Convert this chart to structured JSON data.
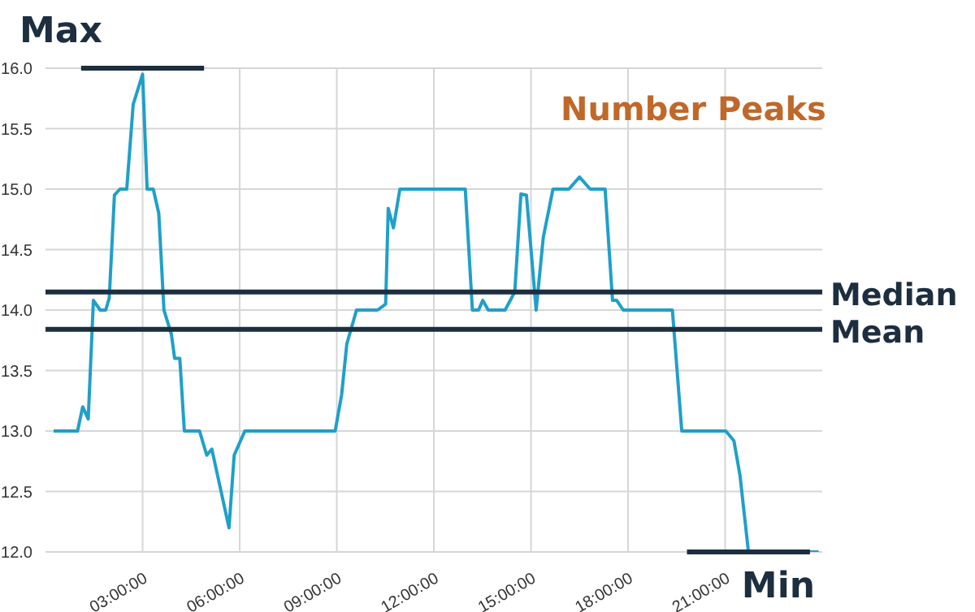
{
  "chart_data": {
    "type": "line",
    "x": [
      0.25,
      0.99,
      1.15,
      1.32,
      1.48,
      1.69,
      1.86,
      1.97,
      2.13,
      2.3,
      2.51,
      2.71,
      3.0,
      3.14,
      3.33,
      3.5,
      3.66,
      3.89,
      3.99,
      4.15,
      4.29,
      4.76,
      4.98,
      5.14,
      5.67,
      5.83,
      6.16,
      8.95,
      9.15,
      9.31,
      9.61,
      10.26,
      10.51,
      10.59,
      10.75,
      10.95,
      12.97,
      13.19,
      13.38,
      13.51,
      13.68,
      14.2,
      14.5,
      14.69,
      14.86,
      15.16,
      15.38,
      15.68,
      16.17,
      16.5,
      16.83,
      17.29,
      17.52,
      17.65,
      17.85,
      19.37,
      19.66,
      21.02,
      21.27,
      21.46,
      21.72,
      23.89
    ],
    "series": [
      {
        "color": "#1fa0c8",
        "values": [
          13.0,
          13.0,
          13.2,
          13.1,
          14.08,
          14.0,
          14.0,
          14.1,
          14.95,
          15.0,
          15.0,
          15.7,
          15.95,
          15.0,
          15.0,
          14.8,
          14.0,
          13.8,
          13.6,
          13.6,
          13.0,
          13.0,
          12.8,
          12.85,
          12.2,
          12.8,
          13.0,
          13.0,
          13.3,
          13.72,
          14.0,
          14.0,
          14.05,
          14.84,
          14.68,
          15.0,
          15.0,
          14.0,
          14.0,
          14.08,
          14.0,
          14.0,
          14.15,
          14.96,
          14.95,
          14.0,
          14.6,
          15.0,
          15.0,
          15.1,
          15.0,
          15.0,
          14.08,
          14.08,
          14.0,
          14.0,
          13.0,
          13.0,
          12.92,
          12.63,
          12.0,
          12.0
        ]
      }
    ],
    "xlim": [
      0,
      24
    ],
    "xticks": [
      {
        "value": 3,
        "label": "03:00:00"
      },
      {
        "value": 6,
        "label": "06:00:00"
      },
      {
        "value": 9,
        "label": "09:00:00"
      },
      {
        "value": 12,
        "label": "12:00:00"
      },
      {
        "value": 15,
        "label": "15:00:00"
      },
      {
        "value": 18,
        "label": "18:00:00"
      },
      {
        "value": 21,
        "label": "21:00:00"
      }
    ],
    "ylim": [
      12,
      16
    ],
    "yticks": [
      {
        "value": 12,
        "label": "12.0"
      },
      {
        "value": 12.5,
        "label": "12.5"
      },
      {
        "value": 13,
        "label": "13.0"
      },
      {
        "value": 13.5,
        "label": "13.5"
      },
      {
        "value": 14,
        "label": "14.0"
      },
      {
        "value": 14.5,
        "label": "14.5"
      },
      {
        "value": 15,
        "label": "15.0"
      },
      {
        "value": 15.5,
        "label": "15.5"
      },
      {
        "value": 16,
        "label": "16.0"
      }
    ],
    "grid": true,
    "marker": "none",
    "line_style": "solid",
    "ref_lines": [
      {
        "axis": "y",
        "value": 16,
        "label": "Max",
        "color": "#1c2e40"
      },
      {
        "axis": "y",
        "value": 14.15,
        "label": "Median",
        "color": "#1c2e40"
      },
      {
        "axis": "y",
        "value": 13.84,
        "label": "Mean",
        "color": "#1c2e40"
      },
      {
        "axis": "y",
        "value": 12,
        "label": "Min",
        "color": "#1c2e40"
      }
    ],
    "annotations": [
      "Number Peaks"
    ]
  }
}
